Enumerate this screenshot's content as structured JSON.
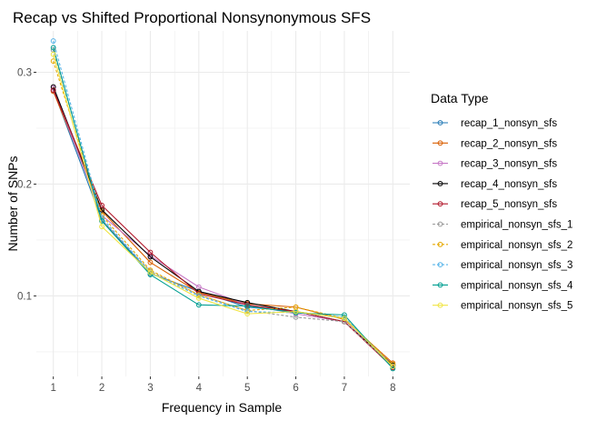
{
  "chart_data": {
    "type": "line",
    "title": "Recap vs Shifted Proportional Nonsynonymous SFS",
    "xlabel": "Frequency in Sample",
    "ylabel": "Number of SNPs",
    "x": [
      1,
      2,
      3,
      4,
      5,
      6,
      7,
      8
    ],
    "xlim": [
      0.65,
      8.35
    ],
    "ylim": [
      0.028,
      0.337
    ],
    "x_ticks": [
      1,
      2,
      3,
      4,
      5,
      6,
      7,
      8
    ],
    "y_ticks": [
      0.1,
      0.2,
      0.3
    ],
    "y_tick_labels": [
      "0.1",
      "0.2",
      "0.3"
    ],
    "grid": true,
    "background": "#ffffff",
    "grid_color": "#ebebeb",
    "legend": {
      "title": "Data Type",
      "placement": "right"
    },
    "series": [
      {
        "name": "recap_1_nonsyn_sfs",
        "color": "#1f77b4",
        "linestyle": "solid",
        "values": [
          0.284,
          0.168,
          0.12,
          0.104,
          0.09,
          0.086,
          0.08,
          0.038
        ]
      },
      {
        "name": "recap_2_nonsyn_sfs",
        "color": "#d95f02",
        "linestyle": "solid",
        "values": [
          0.283,
          0.176,
          0.13,
          0.103,
          0.093,
          0.09,
          0.079,
          0.04
        ]
      },
      {
        "name": "recap_3_nonsyn_sfs",
        "color": "#c678c6",
        "linestyle": "solid",
        "values": [
          0.286,
          0.172,
          0.136,
          0.108,
          0.092,
          0.084,
          0.077,
          0.039
        ]
      },
      {
        "name": "recap_4_nonsyn_sfs",
        "color": "#000000",
        "linestyle": "solid",
        "values": [
          0.287,
          0.177,
          0.135,
          0.104,
          0.094,
          0.086,
          0.077,
          0.038
        ]
      },
      {
        "name": "recap_5_nonsyn_sfs",
        "color": "#b2182b",
        "linestyle": "solid",
        "values": [
          0.284,
          0.181,
          0.139,
          0.102,
          0.092,
          0.086,
          0.077,
          0.036
        ]
      },
      {
        "name": "empirical_nonsyn_sfs_1",
        "color": "#999999",
        "linestyle": "dashed",
        "values": [
          0.32,
          0.168,
          0.122,
          0.101,
          0.087,
          0.081,
          0.077,
          0.037
        ]
      },
      {
        "name": "empirical_nonsyn_sfs_2",
        "color": "#e6a800",
        "linestyle": "dashed",
        "values": [
          0.31,
          0.172,
          0.123,
          0.101,
          0.087,
          0.09,
          0.08,
          0.039
        ]
      },
      {
        "name": "empirical_nonsyn_sfs_3",
        "color": "#56b4e9",
        "linestyle": "dashed",
        "values": [
          0.328,
          0.17,
          0.121,
          0.1,
          0.086,
          0.085,
          0.081,
          0.037
        ]
      },
      {
        "name": "empirical_nonsyn_sfs_4",
        "color": "#009e91",
        "linestyle": "solid",
        "values": [
          0.322,
          0.167,
          0.119,
          0.092,
          0.091,
          0.085,
          0.083,
          0.035
        ]
      },
      {
        "name": "empirical_nonsyn_sfs_5",
        "color": "#f0e442",
        "linestyle": "solid",
        "values": [
          0.316,
          0.162,
          0.121,
          0.098,
          0.084,
          0.086,
          0.08,
          0.037
        ]
      }
    ]
  }
}
